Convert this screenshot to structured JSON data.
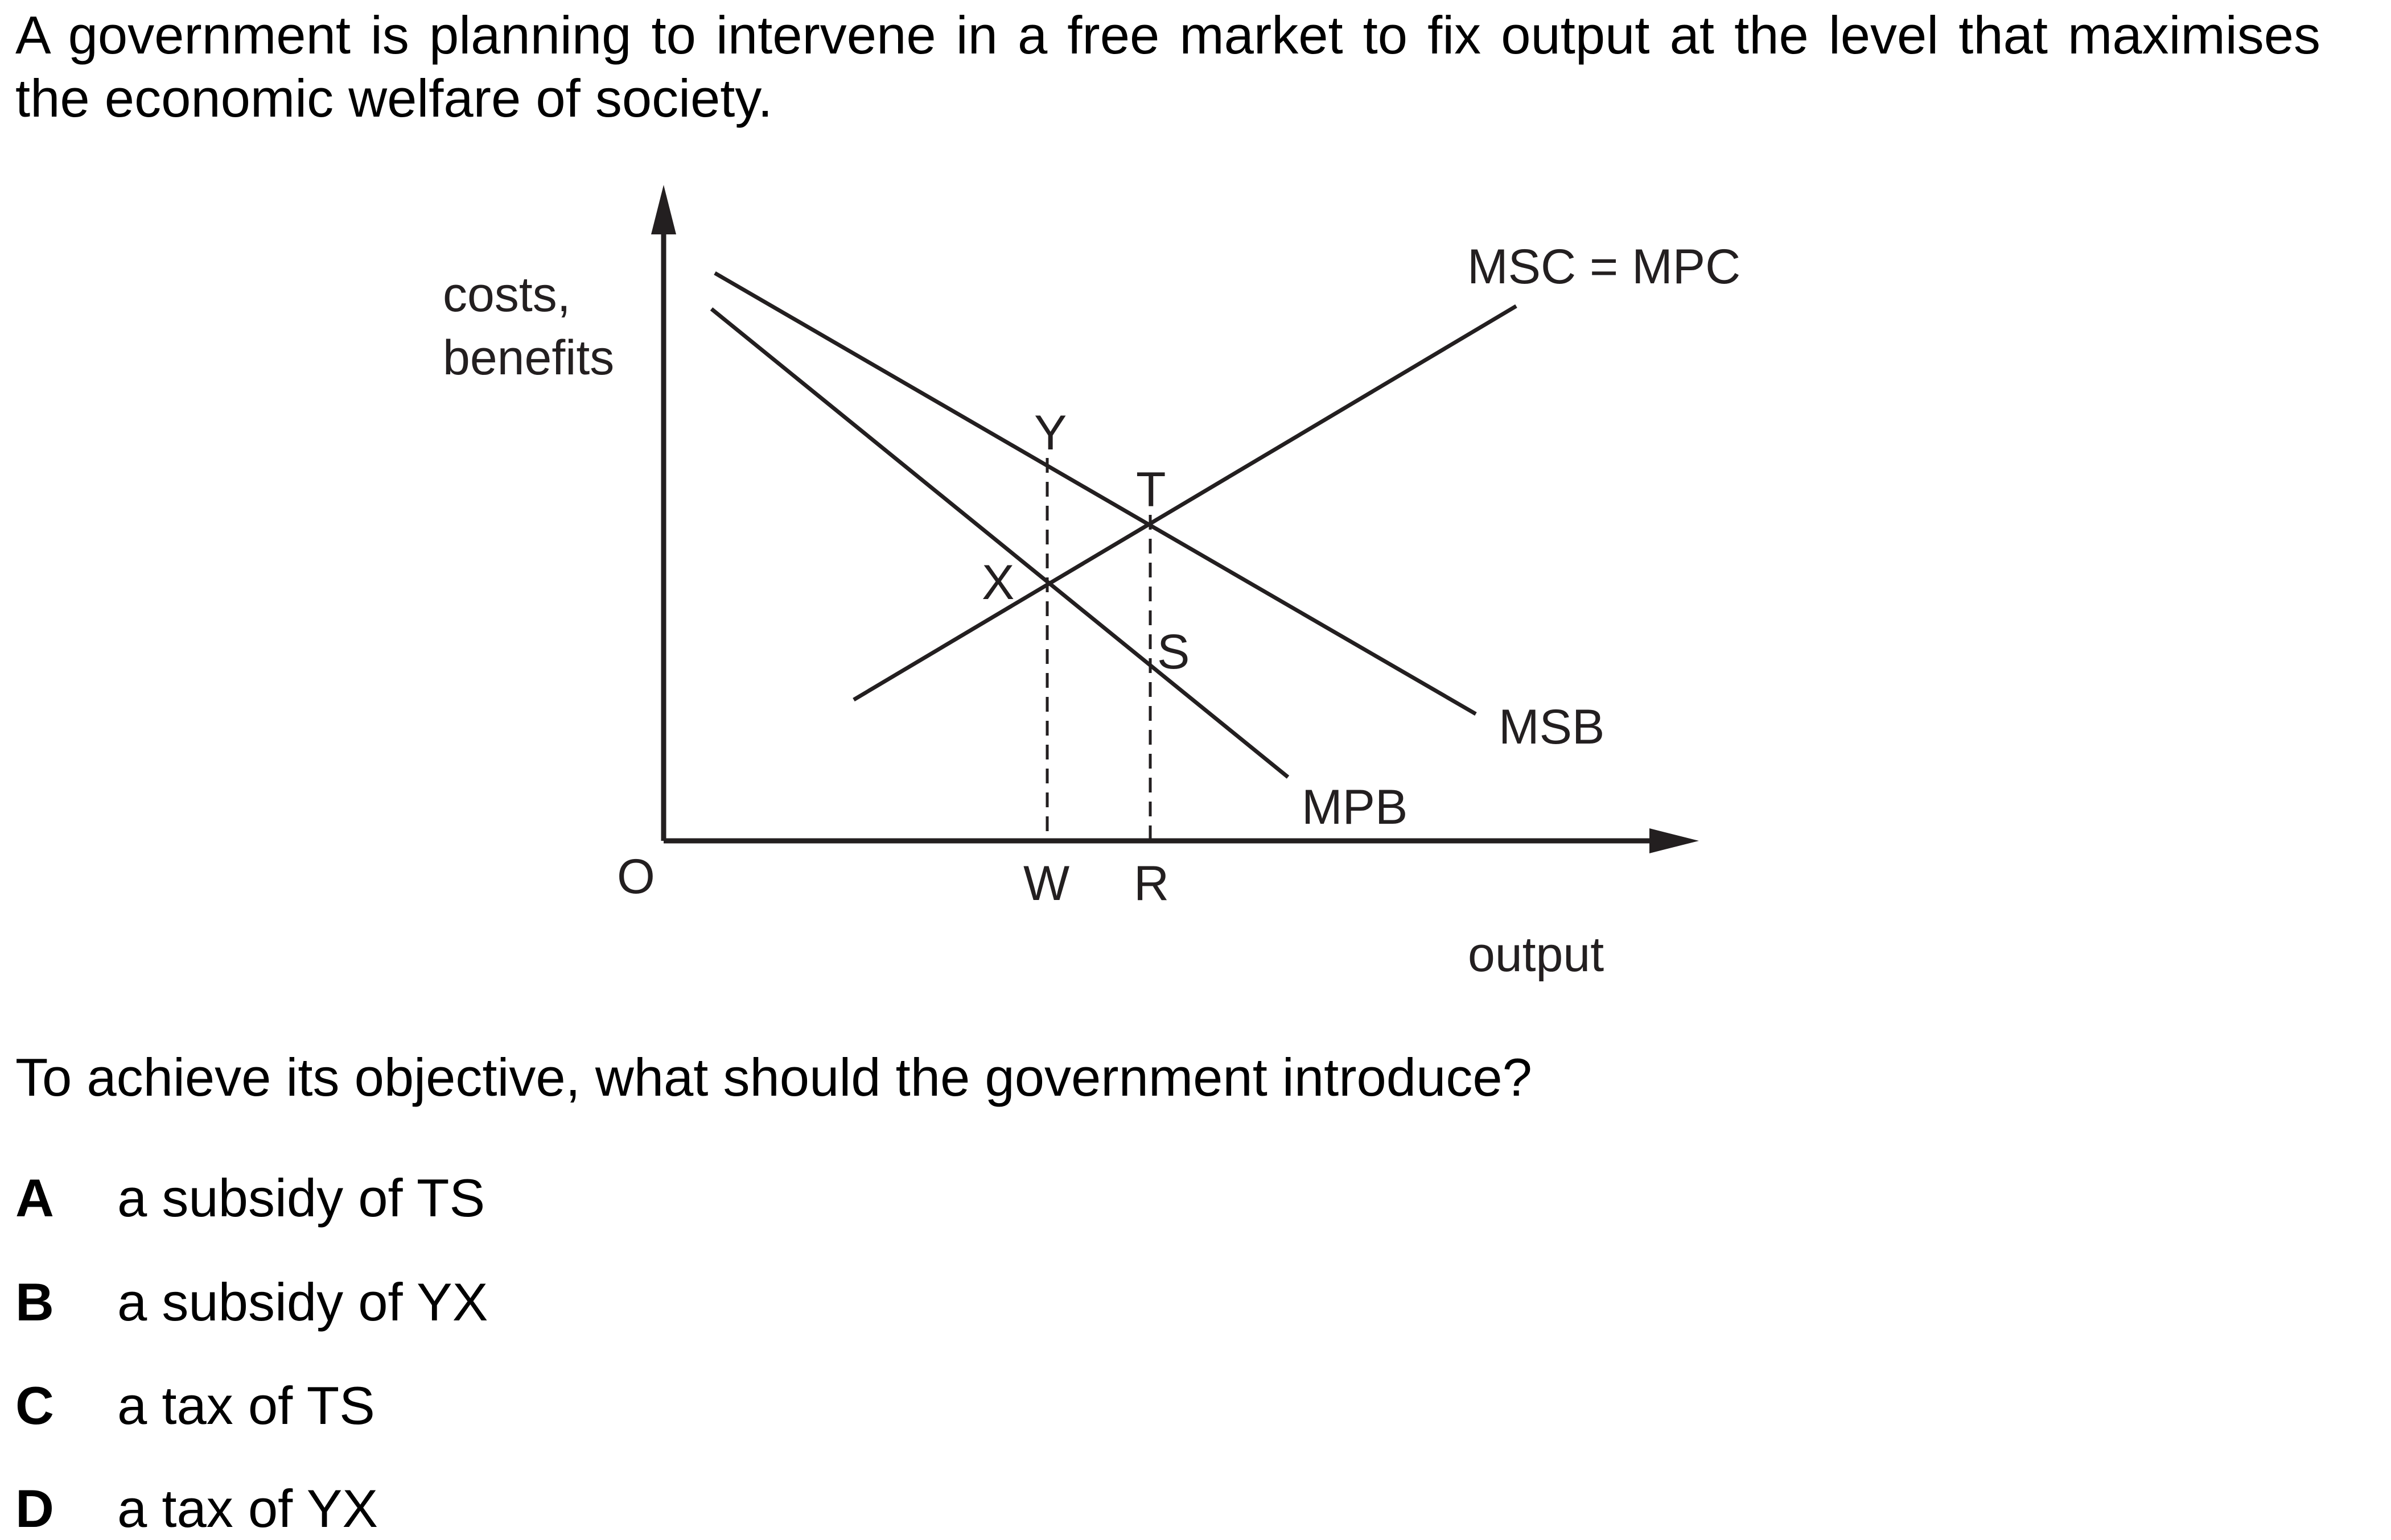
{
  "question": {
    "stem": "A government is planning to intervene in a free market to fix output at the level that maximises the economic welfare of society.",
    "prompt": "To achieve its objective, what should the government introduce?"
  },
  "diagram": {
    "y_axis_label_line1": "costs,",
    "y_axis_label_line2": "benefits",
    "x_axis_label": "output",
    "origin_label": "O",
    "curves": {
      "msc_mpc": "MSC = MPC",
      "msb": "MSB",
      "mpb": "MPB"
    },
    "points": {
      "y": "Y",
      "t": "T",
      "x": "X",
      "s": "S",
      "w": "W",
      "r": "R"
    }
  },
  "options": [
    {
      "letter": "A",
      "text": "a subsidy of TS"
    },
    {
      "letter": "B",
      "text": "a subsidy of YX"
    },
    {
      "letter": "C",
      "text": "a tax of TS"
    },
    {
      "letter": "D",
      "text": "a tax of YX"
    }
  ]
}
